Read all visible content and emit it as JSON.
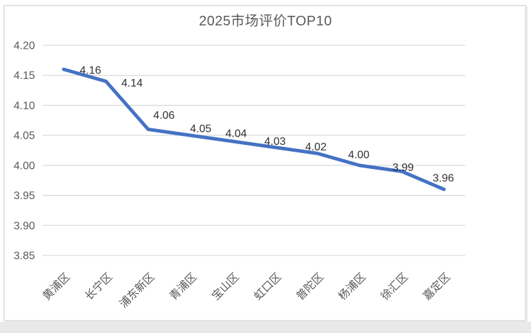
{
  "chart_data": {
    "type": "line",
    "title": "2025市场评价TOP10",
    "categories": [
      "黄浦区",
      "长宁区",
      "浦东新区",
      "青浦区",
      "宝山区",
      "虹口区",
      "普陀区",
      "杨浦区",
      "徐汇区",
      "嘉定区"
    ],
    "values": [
      4.16,
      4.14,
      4.06,
      4.05,
      4.04,
      4.03,
      4.02,
      4.0,
      3.99,
      3.96
    ],
    "data_labels": [
      "4.16",
      "4.14",
      "4.06",
      "4.05",
      "4.04",
      "4.03",
      "4.02",
      "4.00",
      "3.99",
      "3.96"
    ],
    "y_ticks": [
      "4.20",
      "4.15",
      "4.10",
      "4.05",
      "4.00",
      "3.95",
      "3.90",
      "3.85"
    ],
    "ylim": [
      3.85,
      4.2
    ],
    "xlabel": "",
    "ylabel": "",
    "grid": true,
    "legend": false,
    "colors": {
      "line": "#4472C4",
      "gridline": "#D9D9D9",
      "axis_text": "#595959",
      "data_label_text": "#303030",
      "frame_border": "#E2E2E2"
    }
  }
}
